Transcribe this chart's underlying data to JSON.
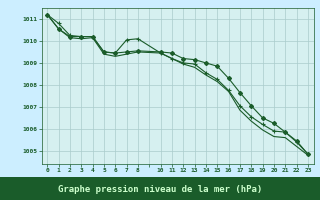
{
  "title": "Graphe pression niveau de la mer (hPa)",
  "bg_color": "#cceeff",
  "plot_bg_color": "#d6f0f0",
  "grid_color": "#aacccc",
  "line_color": "#1a5c2a",
  "footer_bg": "#1a5c2a",
  "footer_text_color": "#ccffcc",
  "ylim": [
    1004.4,
    1011.5
  ],
  "yticks": [
    1005,
    1006,
    1007,
    1008,
    1009,
    1010,
    1011
  ],
  "line1_x": [
    0,
    1,
    2,
    3,
    4,
    5,
    6,
    7,
    8,
    10,
    11,
    12,
    13,
    14,
    15,
    16,
    17,
    18,
    19,
    20,
    21,
    22,
    23
  ],
  "line1_y": [
    1011.2,
    1010.8,
    1010.25,
    1010.2,
    1010.2,
    1009.5,
    1009.45,
    1010.05,
    1010.1,
    1009.45,
    1009.2,
    1009.0,
    1008.95,
    1008.55,
    1008.25,
    1007.75,
    1007.05,
    1006.55,
    1006.2,
    1005.9,
    1005.85,
    1005.4,
    1004.85
  ],
  "line2_x": [
    0,
    1,
    2,
    3,
    4,
    5,
    6,
    7,
    8,
    10,
    11,
    12,
    13,
    14,
    15,
    16,
    17,
    18,
    19,
    20,
    21,
    22,
    23
  ],
  "line2_y": [
    1011.2,
    1010.55,
    1010.2,
    1010.2,
    1010.2,
    1009.5,
    1009.45,
    1009.5,
    1009.55,
    1009.5,
    1009.45,
    1009.2,
    1009.15,
    1009.0,
    1008.85,
    1008.3,
    1007.65,
    1007.05,
    1006.5,
    1006.25,
    1005.85,
    1005.45,
    1004.85
  ],
  "line3_x": [
    0,
    1,
    2,
    3,
    4,
    5,
    6,
    7,
    8,
    10,
    11,
    12,
    13,
    14,
    15,
    16,
    17,
    18,
    19,
    20,
    21,
    22,
    23
  ],
  "line3_y": [
    1011.2,
    1010.55,
    1010.15,
    1010.1,
    1010.15,
    1009.4,
    1009.3,
    1009.4,
    1009.5,
    1009.45,
    1009.2,
    1008.95,
    1008.8,
    1008.45,
    1008.15,
    1007.7,
    1006.85,
    1006.35,
    1005.95,
    1005.65,
    1005.6,
    1005.2,
    1004.8
  ]
}
